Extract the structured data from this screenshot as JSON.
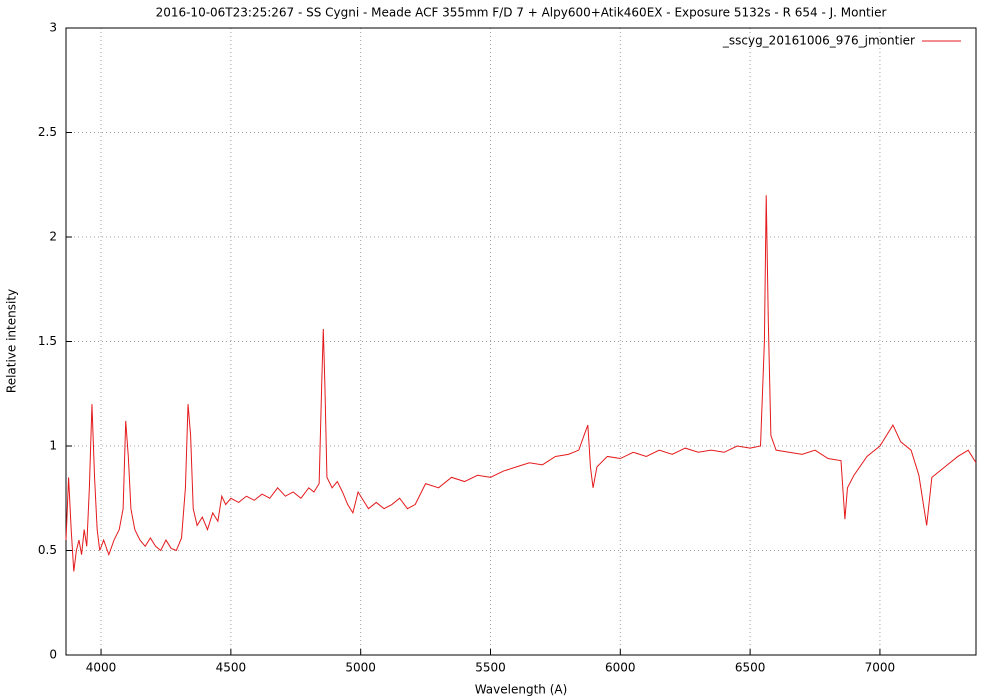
{
  "chart_data": {
    "type": "line",
    "title": "2016-10-06T23:25:267 - SS Cygni - Meade ACF 355mm F/D 7 + Alpy600+Atik460EX - Exposure 5132s - R 654 - J. Montier",
    "xlabel": "Wavelength (A)",
    "ylabel": "Relative intensity",
    "xlim": [
      3865,
      7370
    ],
    "xticks": [
      4000,
      4500,
      5000,
      5500,
      6000,
      6500,
      7000
    ],
    "ylim": [
      0,
      3
    ],
    "yticks": [
      0,
      0.5,
      1,
      1.5,
      2,
      2.5,
      3
    ],
    "grid": true,
    "legend": "top-right",
    "x": [
      3865,
      3875,
      3885,
      3895,
      3905,
      3915,
      3925,
      3935,
      3945,
      3955,
      3965,
      3975,
      3985,
      3995,
      4010,
      4030,
      4050,
      4070,
      4085,
      4095,
      4105,
      4115,
      4130,
      4150,
      4170,
      4190,
      4210,
      4230,
      4250,
      4270,
      4290,
      4310,
      4325,
      4335,
      4345,
      4355,
      4370,
      4390,
      4410,
      4430,
      4450,
      4465,
      4480,
      4500,
      4530,
      4560,
      4590,
      4620,
      4650,
      4680,
      4710,
      4740,
      4770,
      4800,
      4820,
      4840,
      4850,
      4856,
      4862,
      4870,
      4890,
      4910,
      4930,
      4950,
      4970,
      4990,
      5010,
      5030,
      5060,
      5090,
      5120,
      5150,
      5180,
      5210,
      5250,
      5300,
      5350,
      5400,
      5450,
      5500,
      5550,
      5600,
      5650,
      5700,
      5750,
      5800,
      5840,
      5860,
      5875,
      5885,
      5895,
      5910,
      5950,
      6000,
      6050,
      6100,
      6150,
      6200,
      6250,
      6300,
      6350,
      6400,
      6450,
      6500,
      6540,
      6555,
      6562,
      6570,
      6580,
      6600,
      6650,
      6700,
      6750,
      6800,
      6850,
      6865,
      6875,
      6900,
      6950,
      7000,
      7050,
      7080,
      7120,
      7150,
      7180,
      7200,
      7250,
      7300,
      7340,
      7370
    ],
    "series": [
      {
        "name": "_sscyg_20161006_976_jmontier",
        "color": "#e41a1c",
        "values": [
          0.55,
          0.85,
          0.6,
          0.4,
          0.5,
          0.55,
          0.48,
          0.6,
          0.52,
          0.8,
          1.2,
          0.85,
          0.6,
          0.5,
          0.55,
          0.48,
          0.55,
          0.6,
          0.7,
          1.12,
          0.95,
          0.7,
          0.6,
          0.55,
          0.52,
          0.56,
          0.52,
          0.5,
          0.55,
          0.51,
          0.5,
          0.56,
          0.8,
          1.2,
          1.05,
          0.7,
          0.62,
          0.66,
          0.6,
          0.68,
          0.64,
          0.76,
          0.72,
          0.75,
          0.73,
          0.76,
          0.74,
          0.77,
          0.75,
          0.8,
          0.76,
          0.78,
          0.75,
          0.8,
          0.78,
          0.82,
          1.3,
          1.56,
          1.3,
          0.85,
          0.8,
          0.83,
          0.78,
          0.72,
          0.68,
          0.78,
          0.74,
          0.7,
          0.73,
          0.7,
          0.72,
          0.75,
          0.7,
          0.72,
          0.82,
          0.8,
          0.85,
          0.83,
          0.86,
          0.85,
          0.88,
          0.9,
          0.92,
          0.91,
          0.95,
          0.96,
          0.98,
          1.05,
          1.1,
          0.9,
          0.8,
          0.9,
          0.95,
          0.94,
          0.97,
          0.95,
          0.98,
          0.96,
          0.99,
          0.97,
          0.98,
          0.97,
          1.0,
          0.99,
          1.0,
          1.5,
          2.2,
          1.6,
          1.05,
          0.98,
          0.97,
          0.96,
          0.98,
          0.94,
          0.93,
          0.65,
          0.8,
          0.86,
          0.95,
          1.0,
          1.1,
          1.02,
          0.98,
          0.86,
          0.62,
          0.85,
          0.9,
          0.95,
          0.98,
          0.92
        ]
      }
    ]
  }
}
